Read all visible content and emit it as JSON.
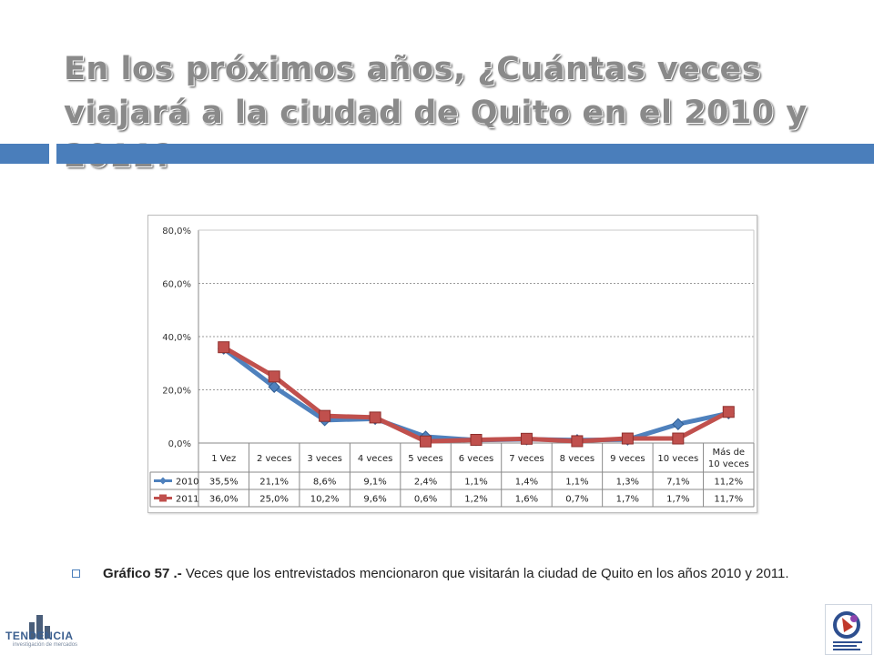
{
  "slide": {
    "title": "En los próximos años, ¿Cuántas veces viajará a la ciudad de Quito en el 2010 y 2011?",
    "caption_bold": "Gráfico 57 .-",
    "caption_text": " Veces que los entrevistados mencionaron que visitarán la ciudad de Quito en los años 2010 y 2011.",
    "logo_left_text": "TENDENCIA",
    "logo_left_sub": "investigación de mercados",
    "accent_color": "#4a7ebb"
  },
  "chart_data": {
    "type": "line",
    "categories": [
      "1 Vez",
      "2 veces",
      "3 veces",
      "4 veces",
      "5 veces",
      "6 veces",
      "7 veces",
      "8 veces",
      "9 veces",
      "10 veces",
      "Más de 10 veces"
    ],
    "series": [
      {
        "name": "2010",
        "color": "#4f81bd",
        "marker": "diamond",
        "values": [
          35.5,
          21.1,
          8.6,
          9.1,
          2.4,
          1.1,
          1.4,
          1.1,
          1.3,
          7.1,
          11.2
        ],
        "labels": [
          "35,5%",
          "21,1%",
          "8,6%",
          "9,1%",
          "2,4%",
          "1,1%",
          "1,4%",
          "1,1%",
          "1,3%",
          "7,1%",
          "11,2%"
        ]
      },
      {
        "name": "2011",
        "color": "#c0504d",
        "marker": "square",
        "values": [
          36.0,
          25.0,
          10.2,
          9.6,
          0.6,
          1.2,
          1.6,
          0.7,
          1.7,
          1.7,
          11.7
        ],
        "labels": [
          "36,0%",
          "25,0%",
          "10,2%",
          "9,6%",
          "0,6%",
          "1,2%",
          "1,6%",
          "0,7%",
          "1,7%",
          "1,7%",
          "11,7%"
        ]
      }
    ],
    "ylim": [
      0,
      80
    ],
    "yticks": [
      "0,0%",
      "20,0%",
      "40,0%",
      "60,0%",
      "80,0%"
    ],
    "grid": true,
    "data_table": true,
    "legend": "data-table"
  }
}
